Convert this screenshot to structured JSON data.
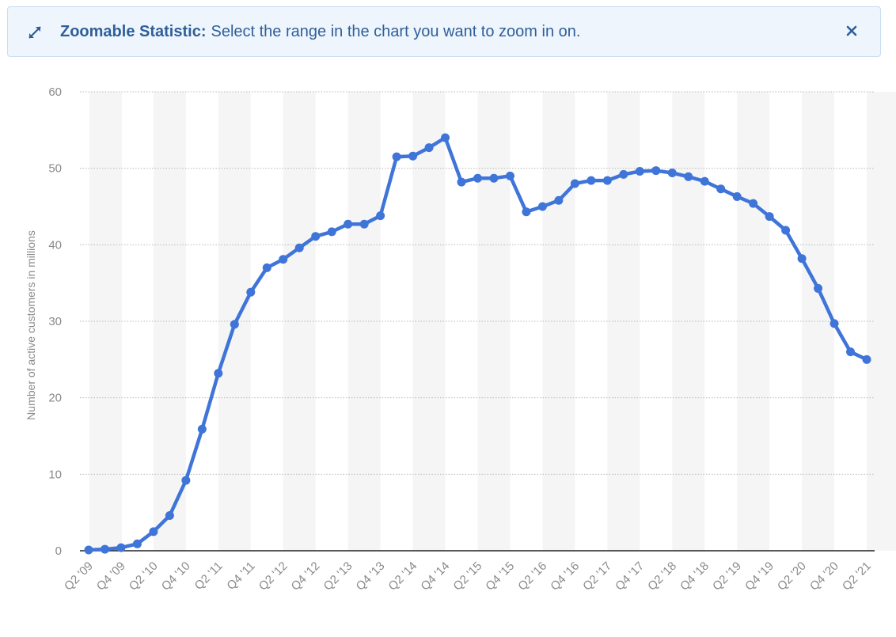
{
  "banner": {
    "title": "Zoomable Statistic:",
    "message": "Select the range in the chart you want to zoom in on.",
    "expand_icon": "expand-arrows-icon",
    "close_icon": "close-icon"
  },
  "colors": {
    "line": "#3f74d9",
    "banner_text": "#2f5f99",
    "banner_bg": "#eef5fd",
    "band": "#f5f5f5",
    "grid": "#b9b9b9",
    "axis_text": "#8a8a8a"
  },
  "chart_data": {
    "type": "line",
    "ylabel": "Number of active customers in millions",
    "xlabel": "",
    "ylim": [
      0,
      60
    ],
    "yticks": [
      0,
      10,
      20,
      30,
      40,
      50,
      60
    ],
    "grid": true,
    "categories": [
      "Q2 '09",
      "Q3 '09",
      "Q4 '09",
      "Q1 '10",
      "Q2 '10",
      "Q3 '10",
      "Q4 '10",
      "Q1 '11",
      "Q2 '11",
      "Q3 '11",
      "Q4 '11",
      "Q1 '12",
      "Q2 '12",
      "Q3 '12",
      "Q4 '12",
      "Q1 '13",
      "Q2 '13",
      "Q3 '13",
      "Q4 '13",
      "Q1 '14",
      "Q2 '14",
      "Q3 '14",
      "Q4 '14",
      "Q1 '15",
      "Q2 '15",
      "Q3 '15",
      "Q4 '15",
      "Q1 '16",
      "Q2 '16",
      "Q3 '16",
      "Q4 '16",
      "Q1 '17",
      "Q2 '17",
      "Q3 '17",
      "Q4 '17",
      "Q1 '18",
      "Q2 '18",
      "Q3 '18",
      "Q4 '18",
      "Q1 '19",
      "Q2 '19",
      "Q3 '19",
      "Q4 '19",
      "Q1 '20",
      "Q2 '20",
      "Q3 '20",
      "Q4 '20",
      "Q1 '21",
      "Q2 '21"
    ],
    "tick_labels": [
      "Q2 '09",
      "Q4 '09",
      "Q2 '10",
      "Q4 '10",
      "Q2 '11",
      "Q4 '11",
      "Q2 '12",
      "Q4 '12",
      "Q2 '13",
      "Q4 '13",
      "Q2 '14",
      "Q4 '14",
      "Q2 '15",
      "Q4 '15",
      "Q2 '16",
      "Q4 '16",
      "Q2 '17",
      "Q4 '17",
      "Q2 '18",
      "Q4 '18",
      "Q2 '19",
      "Q4 '19",
      "Q2 '20",
      "Q4 '20",
      "Q2 '21"
    ],
    "series": [
      {
        "values": [
          0.1,
          0.2,
          0.4,
          0.9,
          2.5,
          4.6,
          9.2,
          15.9,
          23.2,
          29.6,
          33.8,
          37.0,
          38.1,
          39.6,
          41.1,
          41.7,
          42.7,
          42.7,
          43.8,
          51.5,
          51.6,
          52.7,
          54.0,
          48.2,
          48.7,
          48.7,
          49.0,
          44.3,
          45.0,
          45.8,
          48.0,
          48.4,
          48.4,
          49.2,
          49.6,
          49.7,
          49.4,
          48.9,
          48.3,
          47.3,
          46.3,
          45.4,
          43.7,
          41.9,
          38.2,
          34.3,
          29.7,
          26.0,
          25.0
        ]
      }
    ]
  }
}
